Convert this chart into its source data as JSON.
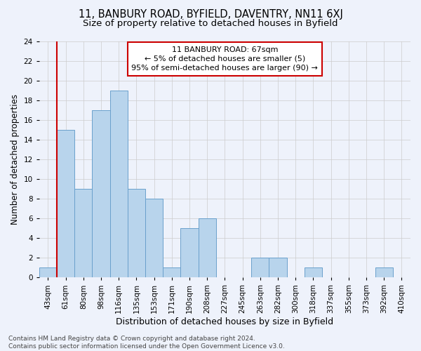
{
  "title": "11, BANBURY ROAD, BYFIELD, DAVENTRY, NN11 6XJ",
  "subtitle": "Size of property relative to detached houses in Byfield",
  "xlabel": "Distribution of detached houses by size in Byfield",
  "ylabel": "Number of detached properties",
  "categories": [
    "43sqm",
    "61sqm",
    "80sqm",
    "98sqm",
    "116sqm",
    "135sqm",
    "153sqm",
    "171sqm",
    "190sqm",
    "208sqm",
    "227sqm",
    "245sqm",
    "263sqm",
    "282sqm",
    "300sqm",
    "318sqm",
    "337sqm",
    "355sqm",
    "373sqm",
    "392sqm",
    "410sqm"
  ],
  "values": [
    1,
    15,
    9,
    17,
    19,
    9,
    8,
    1,
    5,
    6,
    0,
    0,
    2,
    2,
    0,
    1,
    0,
    0,
    0,
    1,
    0
  ],
  "bar_color": "#b8d4ec",
  "bar_edge_color": "#6aa0cc",
  "annotation_box_text": "11 BANBURY ROAD: 67sqm\n← 5% of detached houses are smaller (5)\n95% of semi-detached houses are larger (90) →",
  "annotation_box_color": "#ffffff",
  "annotation_box_edge_color": "#cc0000",
  "highlight_bar_index": 1,
  "red_line_color": "#cc0000",
  "ylim": [
    0,
    24
  ],
  "yticks": [
    0,
    2,
    4,
    6,
    8,
    10,
    12,
    14,
    16,
    18,
    20,
    22,
    24
  ],
  "grid_color": "#cccccc",
  "background_color": "#eef2fb",
  "footer_text": "Contains HM Land Registry data © Crown copyright and database right 2024.\nContains public sector information licensed under the Open Government Licence v3.0.",
  "title_fontsize": 10.5,
  "subtitle_fontsize": 9.5,
  "xlabel_fontsize": 9,
  "ylabel_fontsize": 8.5,
  "tick_fontsize": 7.5,
  "annotation_fontsize": 8,
  "footer_fontsize": 6.5
}
